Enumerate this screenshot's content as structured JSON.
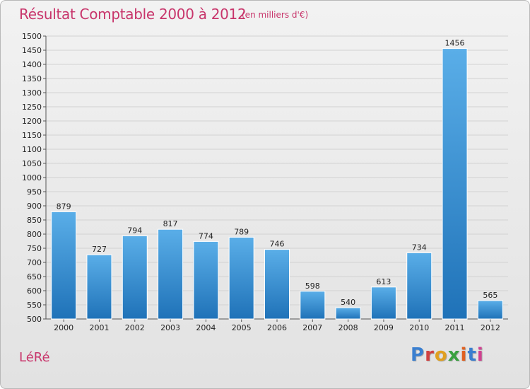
{
  "header": {
    "title": "Résultat Comptable 2000 à 2012",
    "subtitle": "(en milliers d'€)"
  },
  "footer": {
    "place": "LéRé",
    "logo": "Proxiti"
  },
  "colors": {
    "title": "#c8356b",
    "bar_light": "#5aaee8",
    "bar_dark": "#1f72b8",
    "logo_letters": [
      "#3a7fd0",
      "#d04040",
      "#e0a020",
      "#3aa040",
      "#e06020",
      "#3a7fd0",
      "#d04090"
    ]
  },
  "chart_data": {
    "type": "bar",
    "title": "Résultat Comptable 2000 à 2012",
    "subtitle": "(en milliers d'€)",
    "categories": [
      "2000",
      "2001",
      "2002",
      "2003",
      "2004",
      "2005",
      "2006",
      "2007",
      "2008",
      "2009",
      "2010",
      "2011",
      "2012"
    ],
    "values": [
      879,
      727,
      794,
      817,
      774,
      789,
      746,
      598,
      540,
      613,
      734,
      1456,
      565
    ],
    "ylim": [
      500,
      1500
    ],
    "yticks": [
      500,
      550,
      600,
      650,
      700,
      750,
      800,
      850,
      900,
      950,
      1000,
      1050,
      1100,
      1150,
      1200,
      1250,
      1300,
      1350,
      1400,
      1450,
      1500
    ],
    "grid": true,
    "legend": "none"
  }
}
